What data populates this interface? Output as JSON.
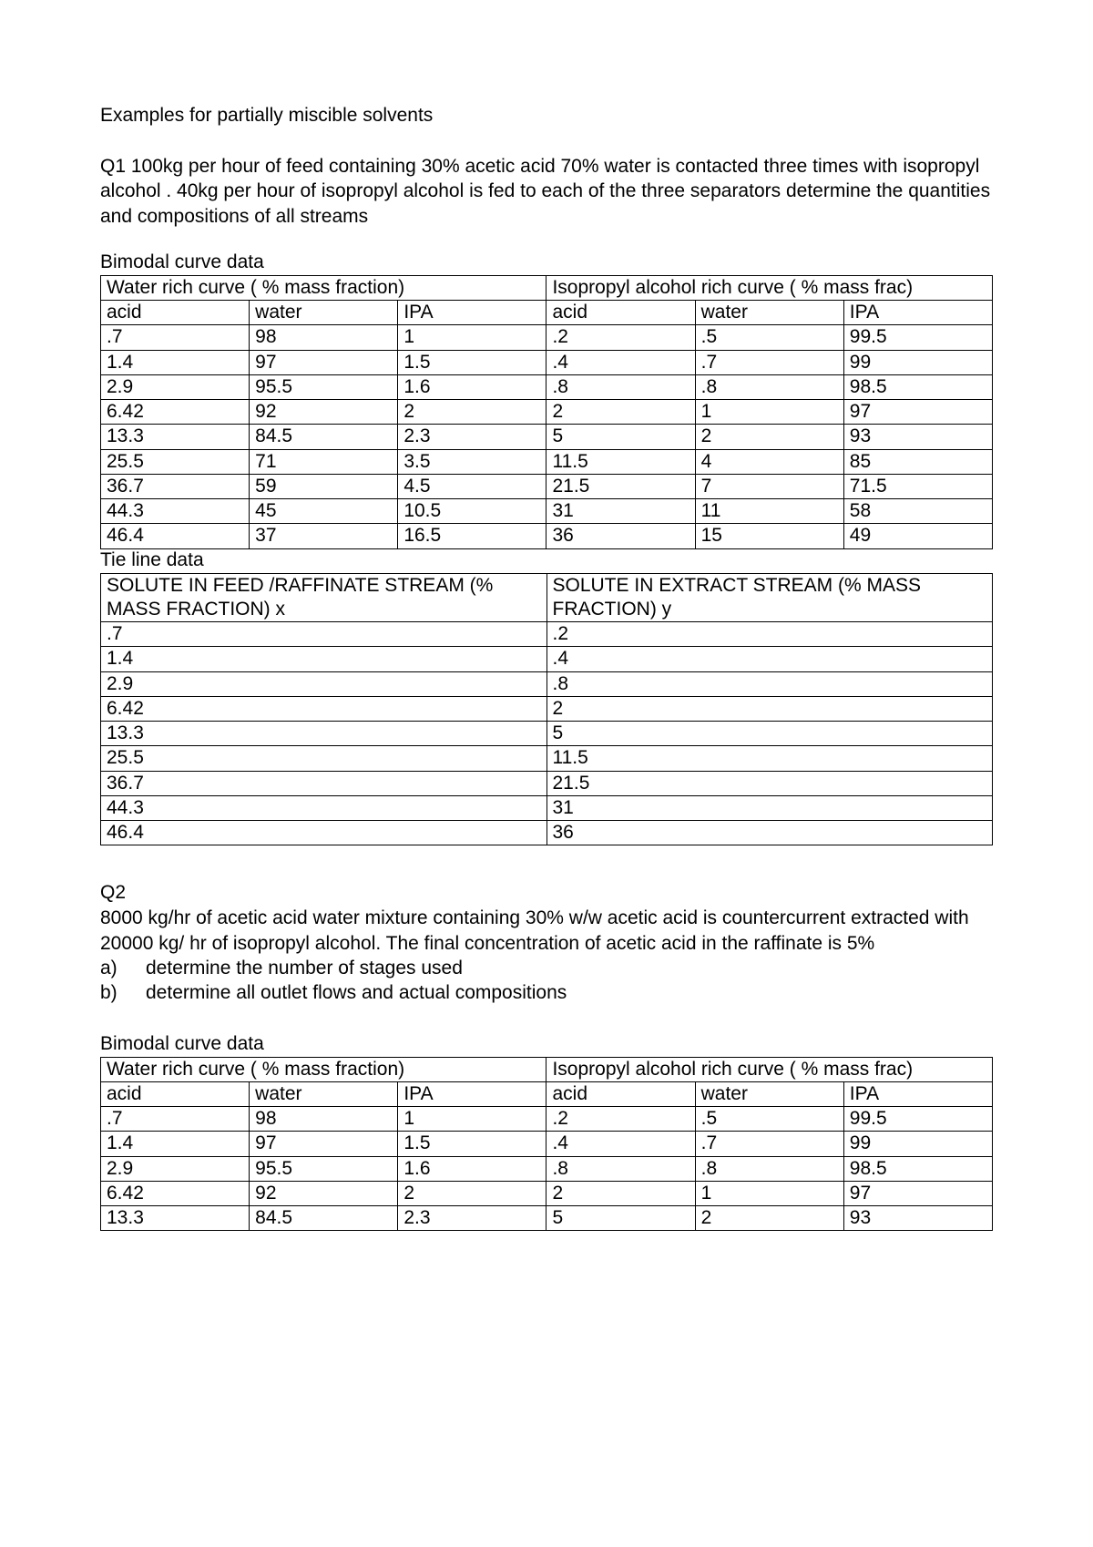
{
  "title": "Examples for partially miscible solvents",
  "q1_text": "Q1 100kg per hour of feed containing 30% acetic acid 70% water is contacted three times with isopropyl alcohol . 40kg  per hour of isopropyl alcohol is fed to each of the three separators determine the quantities and compositions of all streams",
  "bimodal_label": "Bimodal curve data",
  "tie_label": "Tie line data",
  "bimodal": {
    "h_left": "Water rich curve ( % mass fraction)",
    "h_right": "Isopropyl alcohol rich curve ( % mass frac)",
    "col1": "acid",
    "col2": "water",
    "col3": "IPA",
    "col4": "acid",
    "col5": "water",
    "col6": "IPA",
    "rows": [
      {
        "c1": ".7",
        "c2": "98",
        "c3": "1",
        "c4": ".2",
        "c5": ".5",
        "c6": "99.5"
      },
      {
        "c1": "1.4",
        "c2": "97",
        "c3": "1.5",
        "c4": ".4",
        "c5": ".7",
        "c6": "99"
      },
      {
        "c1": "2.9",
        "c2": "95.5",
        "c3": "1.6",
        "c4": ".8",
        "c5": ".8",
        "c6": "98.5"
      },
      {
        "c1": "6.42",
        "c2": "92",
        "c3": "2",
        "c4": "2",
        "c5": "1",
        "c6": "97"
      },
      {
        "c1": "13.3",
        "c2": "84.5",
        "c3": "2.3",
        "c4": "5",
        "c5": "2",
        "c6": "93"
      },
      {
        "c1": "25.5",
        "c2": "71",
        "c3": "3.5",
        "c4": "11.5",
        "c5": "4",
        "c6": "85"
      },
      {
        "c1": "36.7",
        "c2": "59",
        "c3": "4.5",
        "c4": "21.5",
        "c5": "7",
        "c6": "71.5"
      },
      {
        "c1": "44.3",
        "c2": "45",
        "c3": "10.5",
        "c4": "31",
        "c5": "11",
        "c6": "58"
      },
      {
        "c1": "46.4",
        "c2": "37",
        "c3": "16.5",
        "c4": "36",
        "c5": "15",
        "c6": "49"
      }
    ]
  },
  "tie": {
    "h_left": "SOLUTE IN FEED /RAFFINATE STREAM (% MASS FRACTION) x",
    "h_right": "SOLUTE IN EXTRACT STREAM (% MASS FRACTION) y",
    "rows": [
      {
        "x": ".7",
        "y": ".2"
      },
      {
        "x": "1.4",
        "y": ".4"
      },
      {
        "x": "2.9",
        "y": ".8"
      },
      {
        "x": "6.42",
        "y": "2"
      },
      {
        "x": "13.3",
        "y": "5"
      },
      {
        "x": "25.5",
        "y": "11.5"
      },
      {
        "x": "36.7",
        "y": "21.5"
      },
      {
        "x": "44.3",
        "y": "31"
      },
      {
        "x": "46.4",
        "y": "36"
      }
    ]
  },
  "q2_label": "Q2",
  "q2_text": "8000 kg/hr of acetic acid water mixture containing 30% w/w acetic acid is countercurrent extracted with 20000 kg/ hr of isopropyl alcohol. The final concentration of acetic acid in the  raffinate is 5%",
  "q2_a_mark": "a)",
  "q2_a_text": "determine the number of stages used",
  "q2_b_mark": "b)",
  "q2_b_text": "determine all outlet flows and actual compositions",
  "bimodal2_label": " Bimodal curve data",
  "bimodal2": {
    "rows": [
      {
        "c1": ".7",
        "c2": "98",
        "c3": "1",
        "c4": ".2",
        "c5": ".5",
        "c6": "99.5"
      },
      {
        "c1": "1.4",
        "c2": "97",
        "c3": "1.5",
        "c4": ".4",
        "c5": ".7",
        "c6": "99"
      },
      {
        "c1": "2.9",
        "c2": "95.5",
        "c3": "1.6",
        "c4": ".8",
        "c5": ".8",
        "c6": "98.5"
      },
      {
        "c1": "6.42",
        "c2": "92",
        "c3": "2",
        "c4": "2",
        "c5": "1",
        "c6": "97"
      },
      {
        "c1": "13.3",
        "c2": "84.5",
        "c3": "2.3",
        "c4": "5",
        "c5": "2",
        "c6": "93"
      }
    ]
  }
}
